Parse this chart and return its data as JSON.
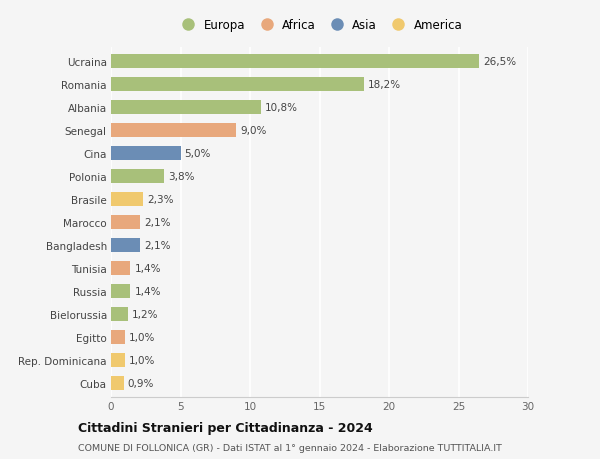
{
  "countries": [
    "Ucraina",
    "Romania",
    "Albania",
    "Senegal",
    "Cina",
    "Polonia",
    "Brasile",
    "Marocco",
    "Bangladesh",
    "Tunisia",
    "Russia",
    "Bielorussia",
    "Egitto",
    "Rep. Dominicana",
    "Cuba"
  ],
  "values": [
    26.5,
    18.2,
    10.8,
    9.0,
    5.0,
    3.8,
    2.3,
    2.1,
    2.1,
    1.4,
    1.4,
    1.2,
    1.0,
    1.0,
    0.9
  ],
  "labels": [
    "26,5%",
    "18,2%",
    "10,8%",
    "9,0%",
    "5,0%",
    "3,8%",
    "2,3%",
    "2,1%",
    "2,1%",
    "1,4%",
    "1,4%",
    "1,2%",
    "1,0%",
    "1,0%",
    "0,9%"
  ],
  "continents": [
    "Europa",
    "Europa",
    "Europa",
    "Africa",
    "Asia",
    "Europa",
    "America",
    "Africa",
    "Asia",
    "Africa",
    "Europa",
    "Europa",
    "Africa",
    "America",
    "America"
  ],
  "continent_colors": {
    "Europa": "#a8c07a",
    "Africa": "#e8a87c",
    "Asia": "#6b8db5",
    "America": "#f0c96e"
  },
  "legend_order": [
    "Europa",
    "Africa",
    "Asia",
    "America"
  ],
  "title": "Cittadini Stranieri per Cittadinanza - 2024",
  "subtitle": "COMUNE DI FOLLONICA (GR) - Dati ISTAT al 1° gennaio 2024 - Elaborazione TUTTITALIA.IT",
  "xlim": [
    0,
    30
  ],
  "xticks": [
    0,
    5,
    10,
    15,
    20,
    25,
    30
  ],
  "bg_color": "#f5f5f5",
  "grid_color": "#ffffff",
  "bar_height": 0.6
}
